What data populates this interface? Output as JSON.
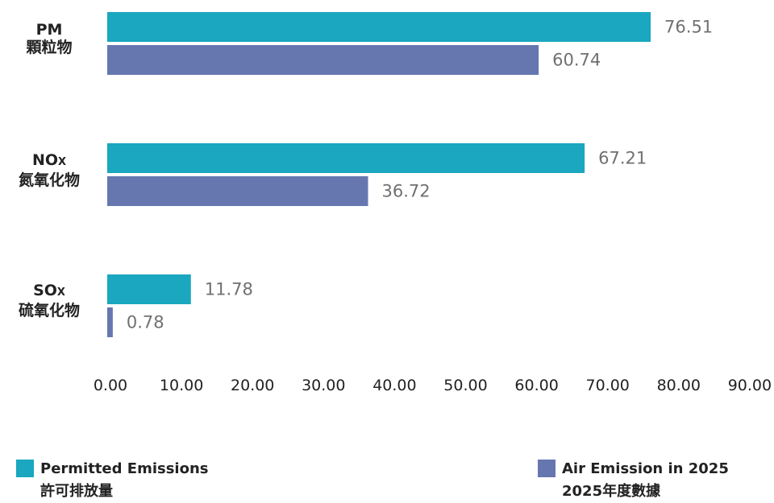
{
  "chart_data": {
    "type": "bar",
    "orientation": "horizontal",
    "categories": [
      {
        "name": "PM",
        "sub": "",
        "zh": "顆粒物"
      },
      {
        "name": "NO",
        "sub": "X",
        "zh": "氮氧化物"
      },
      {
        "name": "SO",
        "sub": "X",
        "zh": "硫氧化物"
      }
    ],
    "series": [
      {
        "name": "Permitted Emissions",
        "name_zh": "許可排放量",
        "color": "#1aa7bf",
        "values": [
          76.51,
          67.21,
          11.78
        ],
        "labels": [
          "76.51",
          "67.21",
          "11.78"
        ]
      },
      {
        "name": "Air Emission in 2025",
        "name_zh": "2025年度數據",
        "color": "#6677b0",
        "values": [
          60.74,
          36.72,
          0.78
        ],
        "labels": [
          "60.74",
          "36.72",
          "0.78"
        ]
      }
    ],
    "xlim": [
      0,
      90
    ],
    "x_ticks": [
      "0.00",
      "10.00",
      "20.00",
      "30.00",
      "40.00",
      "50.00",
      "60.00",
      "70.00",
      "80.00",
      "90.00"
    ],
    "grid": false,
    "legend_position": "bottom"
  }
}
